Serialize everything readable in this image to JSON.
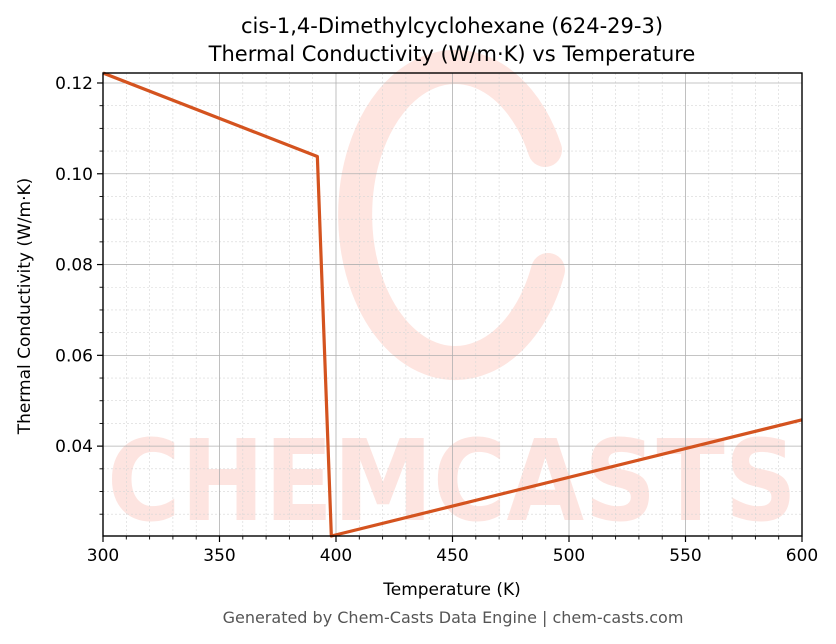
{
  "chart_data": {
    "type": "line",
    "title": "cis-1,4-Dimethylcyclohexane (624-29-3)",
    "subtitle": "Thermal Conductivity (W/m·K) vs Temperature",
    "xlabel": "Temperature (K)",
    "ylabel": "Thermal Conductivity (W/m·K)",
    "xlim": [
      300,
      600
    ],
    "ylim": [
      0.0202,
      0.1222
    ],
    "xticks": [
      300,
      350,
      400,
      450,
      500,
      550,
      600
    ],
    "xtick_labels": [
      "300",
      "350",
      "400",
      "450",
      "500",
      "550",
      "600"
    ],
    "yticks": [
      0.04,
      0.06,
      0.08,
      0.1,
      0.12
    ],
    "ytick_labels": [
      "0.04",
      "0.06",
      "0.08",
      "0.10",
      "0.12"
    ],
    "grid": true,
    "legend": "none",
    "series": [
      {
        "color": "#d4531f",
        "x": [
          300,
          392,
          398,
          600
        ],
        "y": [
          0.1222,
          0.1038,
          0.0202,
          0.0458
        ]
      }
    ]
  },
  "watermark": {
    "text": "CHEMCASTS",
    "color": "#fddcd6"
  },
  "footer": "Generated by Chem-Casts Data Engine | chem-casts.com"
}
